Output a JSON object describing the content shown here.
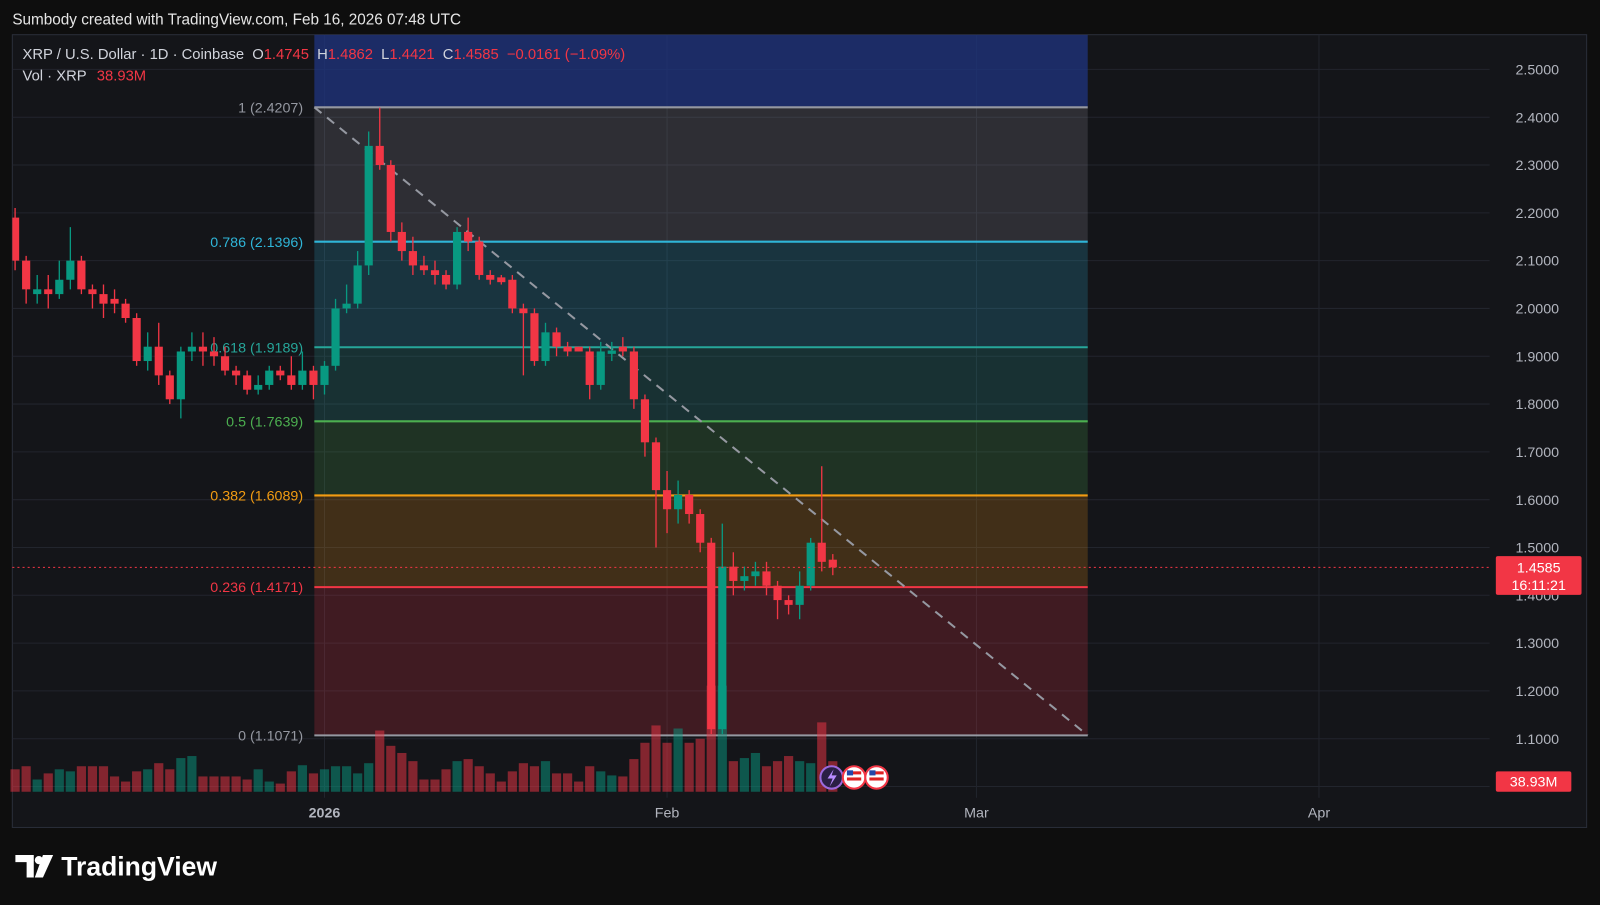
{
  "header": "Sumbody created with TradingView.com, Feb 16, 2026 07:48 UTC",
  "footer_logo": "TradingView",
  "chart_data": {
    "type": "candlestick",
    "title": "XRP / U.S. Dollar · 1D · Coinbase",
    "ohlc_prefixes": {
      "open": "O",
      "high": "H",
      "low": "L",
      "close": "C"
    },
    "change": "−0.0161 (−1.09%)",
    "volume_title": "Vol · XRP",
    "volume_value_label": "38.93M",
    "countdown": "16:11:21",
    "up_color": "#089981",
    "down_color": "#f23645",
    "x": [
      -28,
      -27,
      -26,
      -25,
      -24,
      -23,
      -22,
      -21,
      -20,
      -19,
      -18,
      -17,
      -16,
      -15,
      -14,
      -13,
      -12,
      -11,
      -10,
      -9,
      -8,
      -7,
      -6,
      -5,
      -4,
      -3,
      -2,
      -1,
      0,
      1,
      2,
      3,
      4,
      5,
      6,
      7,
      8,
      9,
      10,
      11,
      12,
      13,
      14,
      15,
      16,
      17,
      18,
      19,
      20,
      21,
      22,
      23,
      24,
      25,
      26,
      27,
      28,
      29,
      30,
      31,
      32,
      33,
      34,
      35,
      36,
      37,
      38,
      39,
      40,
      41,
      42,
      43,
      44,
      45,
      46
    ],
    "open": [
      2.19,
      2.1,
      2.03,
      2.04,
      2.03,
      2.06,
      2.1,
      2.04,
      2.03,
      2.02,
      2.01,
      1.98,
      1.89,
      1.92,
      1.86,
      1.81,
      1.91,
      1.92,
      1.91,
      1.9,
      1.87,
      1.86,
      1.83,
      1.84,
      1.87,
      1.86,
      1.84,
      1.87,
      1.84,
      1.88,
      2.0,
      2.01,
      2.09,
      2.34,
      2.3,
      2.16,
      2.12,
      2.09,
      2.08,
      2.07,
      2.05,
      2.16,
      2.14,
      2.07,
      2.065,
      2.06,
      2.0,
      1.99,
      1.89,
      1.95,
      1.92,
      1.92,
      1.91,
      1.84,
      1.905,
      1.92,
      1.91,
      1.81,
      1.72,
      1.62,
      1.58,
      1.61,
      1.57,
      1.51,
      1.12,
      1.46,
      1.43,
      1.44,
      1.45,
      1.42,
      1.39,
      1.38,
      1.42,
      1.51,
      1.4745
    ],
    "high": [
      2.21,
      2.11,
      2.07,
      2.07,
      2.1,
      2.17,
      2.11,
      2.05,
      2.05,
      2.04,
      2.02,
      1.99,
      1.95,
      1.97,
      1.87,
      1.92,
      1.95,
      1.95,
      1.94,
      1.92,
      1.88,
      1.87,
      1.86,
      1.88,
      1.88,
      1.9,
      1.91,
      1.88,
      1.89,
      2.02,
      2.05,
      2.12,
      2.37,
      2.42,
      2.31,
      2.18,
      2.15,
      2.11,
      2.1,
      2.08,
      2.17,
      2.19,
      2.15,
      2.08,
      2.07,
      2.07,
      2.01,
      2.0,
      1.97,
      1.96,
      1.93,
      1.92,
      1.92,
      1.93,
      1.93,
      1.94,
      1.92,
      1.82,
      1.73,
      1.66,
      1.64,
      1.62,
      1.58,
      1.52,
      1.55,
      1.49,
      1.46,
      1.47,
      1.47,
      1.43,
      1.4,
      1.45,
      1.52,
      1.67,
      1.4862
    ],
    "low": [
      2.08,
      2.01,
      2.01,
      2.0,
      2.02,
      2.04,
      2.03,
      2.0,
      1.98,
      1.99,
      1.97,
      1.88,
      1.87,
      1.84,
      1.8,
      1.77,
      1.89,
      1.88,
      1.88,
      1.86,
      1.84,
      1.82,
      1.82,
      1.83,
      1.85,
      1.83,
      1.83,
      1.81,
      1.82,
      1.87,
      1.99,
      2.0,
      2.07,
      2.29,
      2.14,
      2.1,
      2.07,
      2.07,
      2.05,
      2.04,
      2.04,
      2.12,
      2.06,
      2.05,
      2.05,
      1.99,
      1.86,
      1.88,
      1.88,
      1.9,
      1.9,
      1.91,
      1.81,
      1.83,
      1.89,
      1.9,
      1.79,
      1.69,
      1.5,
      1.53,
      1.55,
      1.55,
      1.49,
      1.11,
      1.11,
      1.4,
      1.41,
      1.42,
      1.4,
      1.35,
      1.36,
      1.35,
      1.41,
      1.45,
      1.4421
    ],
    "close": [
      2.1,
      2.04,
      2.04,
      2.03,
      2.06,
      2.1,
      2.04,
      2.03,
      2.01,
      2.01,
      1.98,
      1.89,
      1.92,
      1.86,
      1.81,
      1.91,
      1.92,
      1.91,
      1.9,
      1.87,
      1.86,
      1.83,
      1.84,
      1.87,
      1.86,
      1.84,
      1.87,
      1.84,
      1.88,
      2.0,
      2.01,
      2.09,
      2.34,
      2.3,
      2.16,
      2.12,
      2.09,
      2.08,
      2.07,
      2.05,
      2.16,
      2.14,
      2.07,
      2.06,
      2.055,
      2.0,
      1.99,
      1.89,
      1.95,
      1.92,
      1.91,
      1.91,
      1.84,
      1.91,
      1.912,
      1.91,
      1.81,
      1.72,
      1.62,
      1.58,
      1.61,
      1.57,
      1.51,
      1.12,
      1.46,
      1.43,
      1.44,
      1.45,
      1.42,
      1.39,
      1.38,
      1.42,
      1.51,
      1.47,
      1.4585
    ],
    "volume": [
      28.6,
      32.5,
      15.6,
      23.4,
      28.6,
      26,
      32.5,
      32.5,
      32.5,
      19.5,
      13,
      26,
      28.6,
      36.4,
      28.6,
      42.9,
      45.5,
      19.5,
      19.5,
      19.5,
      19.5,
      15.6,
      28.6,
      13,
      10.4,
      26,
      33.8,
      23.4,
      28.6,
      32.5,
      32.5,
      23.4,
      36.4,
      78,
      58.5,
      49.4,
      39,
      15.6,
      15.6,
      28.6,
      39,
      41.6,
      32.5,
      23.4,
      13,
      26,
      36.4,
      32.5,
      39,
      23.4,
      23.4,
      13,
      32.5,
      26,
      20.8,
      19.5,
      41.6,
      62.4,
      84.5,
      62.4,
      80.6,
      62.4,
      67.6,
      135.2,
      135.2,
      39,
      42.9,
      49.4,
      32.5,
      39,
      45.5,
      39,
      36.4,
      88.4,
      38.93
    ],
    "ylim": [
      0.9763,
      2.5726
    ],
    "yticks": [
      {
        "value": 2.5,
        "label": "2.5000"
      },
      {
        "value": 2.4,
        "label": "2.4000"
      },
      {
        "value": 2.3,
        "label": "2.3000"
      },
      {
        "value": 2.2,
        "label": "2.2000"
      },
      {
        "value": 2.1,
        "label": "2.1000"
      },
      {
        "value": 2.0,
        "label": "2.0000"
      },
      {
        "value": 1.9,
        "label": "1.9000"
      },
      {
        "value": 1.8,
        "label": "1.8000"
      },
      {
        "value": 1.7,
        "label": "1.7000"
      },
      {
        "value": 1.6,
        "label": "1.6000"
      },
      {
        "value": 1.5,
        "label": "1.5000"
      },
      {
        "value": 1.4,
        "label": "1.4000"
      },
      {
        "value": 1.3,
        "label": "1.3000"
      },
      {
        "value": 1.2,
        "label": "1.2000"
      },
      {
        "value": 1.1,
        "label": "1.1000"
      },
      {
        "value": 1.0,
        "label": "1.0000"
      }
    ],
    "xlim": [
      -28.25,
      105.45
    ],
    "xticks": [
      {
        "value": 0,
        "label": "2026"
      },
      {
        "value": 31,
        "label": "Feb"
      },
      {
        "value": 59,
        "label": "Mar"
      },
      {
        "value": 90,
        "label": "Apr"
      }
    ],
    "grid": true,
    "fib": [
      {
        "level": 1,
        "price": 2.4207,
        "label": "1 (2.4207)",
        "color": "#9598a1"
      },
      {
        "level": 0.786,
        "price": 2.1396,
        "label": "0.786 (2.1396)",
        "color": "#2fb5d8"
      },
      {
        "level": 0.618,
        "price": 1.9189,
        "label": "0.618 (1.9189)",
        "color": "#26a69a"
      },
      {
        "level": 0.5,
        "price": 1.7639,
        "label": "0.5 (1.7639)",
        "color": "#4caf50"
      },
      {
        "level": 0.382,
        "price": 1.6089,
        "label": "0.382 (1.6089)",
        "color": "#f39c12"
      },
      {
        "level": 0.236,
        "price": 1.4171,
        "label": "0.236 (1.4171)",
        "color": "#f23645"
      },
      {
        "level": 0,
        "price": 1.1071,
        "label": "0 (1.1071)",
        "color": "#9598a1"
      }
    ]
  }
}
